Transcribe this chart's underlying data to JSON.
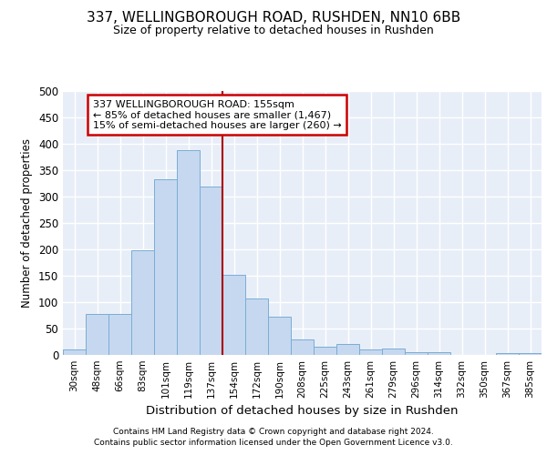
{
  "title_line1": "337, WELLINGBOROUGH ROAD, RUSHDEN, NN10 6BB",
  "title_line2": "Size of property relative to detached houses in Rushden",
  "xlabel": "Distribution of detached houses by size in Rushden",
  "ylabel": "Number of detached properties",
  "categories": [
    "30sqm",
    "48sqm",
    "66sqm",
    "83sqm",
    "101sqm",
    "119sqm",
    "137sqm",
    "154sqm",
    "172sqm",
    "190sqm",
    "208sqm",
    "225sqm",
    "243sqm",
    "261sqm",
    "279sqm",
    "296sqm",
    "314sqm",
    "332sqm",
    "350sqm",
    "367sqm",
    "385sqm"
  ],
  "values": [
    10,
    77,
    77,
    199,
    333,
    388,
    319,
    151,
    107,
    72,
    30,
    15,
    21,
    10,
    12,
    5,
    5,
    0,
    0,
    3,
    3
  ],
  "bar_color": "#c5d8f0",
  "bar_edge_color": "#7aadd4",
  "vline_x_index": 7,
  "vline_color": "#aa0000",
  "annotation_line1": "337 WELLINGBOROUGH ROAD: 155sqm",
  "annotation_line2": "← 85% of detached houses are smaller (1,467)",
  "annotation_line3": "15% of semi-detached houses are larger (260) →",
  "annotation_box_color": "#ffffff",
  "annotation_box_edge_color": "#cc0000",
  "ylim": [
    0,
    500
  ],
  "yticks": [
    0,
    50,
    100,
    150,
    200,
    250,
    300,
    350,
    400,
    450,
    500
  ],
  "fig_bg_color": "#ffffff",
  "plot_bg_color": "#e8eef8",
  "grid_color": "#ffffff",
  "footer_line1": "Contains HM Land Registry data © Crown copyright and database right 2024.",
  "footer_line2": "Contains public sector information licensed under the Open Government Licence v3.0."
}
